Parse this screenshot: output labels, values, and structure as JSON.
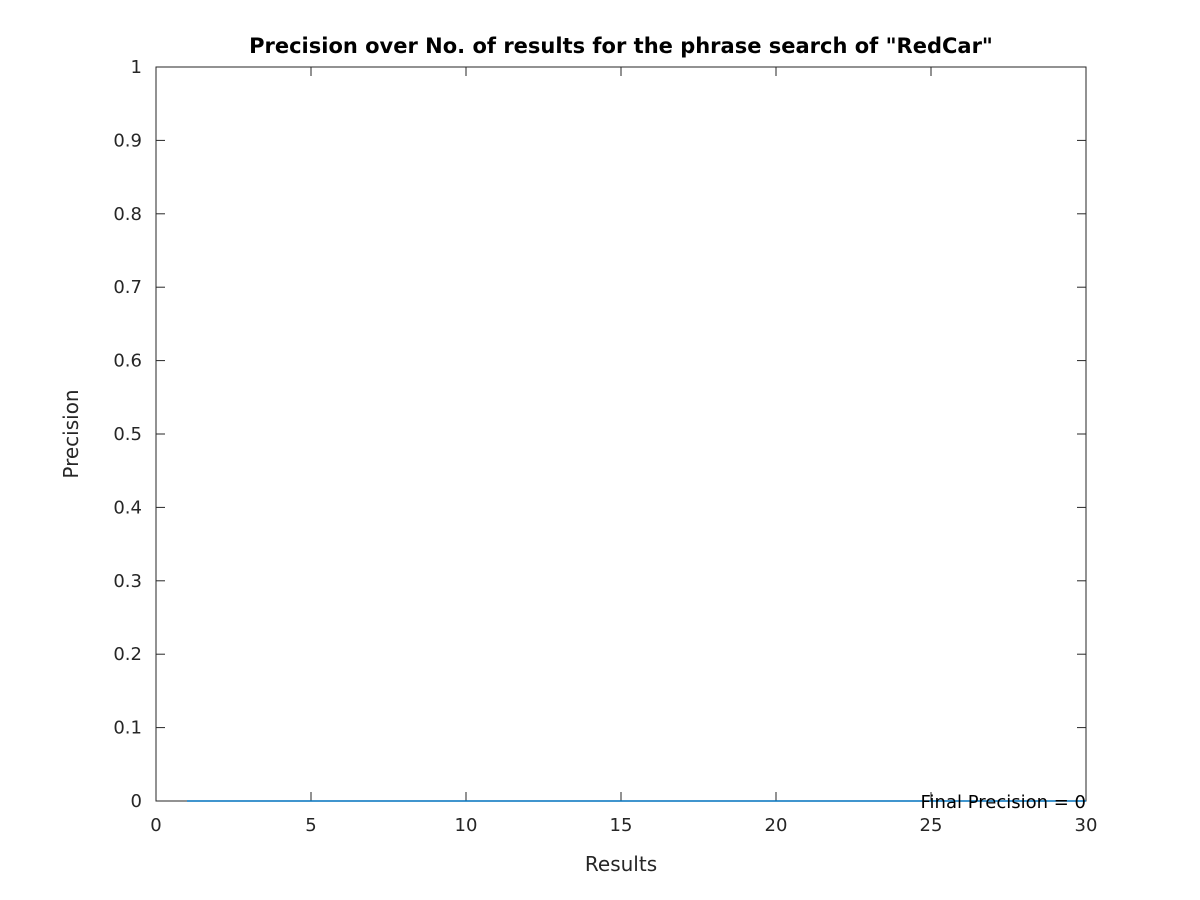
{
  "chart_data": {
    "type": "line",
    "title": "Precision over No. of results for the phrase search of \"RedCar\"",
    "xlabel": "Results",
    "ylabel": "Precision",
    "xlim": [
      0,
      30
    ],
    "ylim": [
      0,
      1
    ],
    "x_ticks": [
      0,
      5,
      10,
      15,
      20,
      25,
      30
    ],
    "x_tick_labels": [
      "0",
      "5",
      "10",
      "15",
      "20",
      "25",
      "30"
    ],
    "y_ticks": [
      0,
      0.1,
      0.2,
      0.3,
      0.4,
      0.5,
      0.6,
      0.7,
      0.8,
      0.9,
      1
    ],
    "y_tick_labels": [
      "0",
      "0.1",
      "0.2",
      "0.3",
      "0.4",
      "0.5",
      "0.6",
      "0.7",
      "0.8",
      "0.9",
      "1"
    ],
    "grid": false,
    "series": [
      {
        "x": [
          1,
          2,
          3,
          4,
          5,
          6,
          7,
          8,
          9,
          10,
          11,
          12,
          13,
          14,
          15,
          16,
          17,
          18,
          19,
          20,
          21,
          22,
          23,
          24,
          25,
          26,
          27,
          28,
          29,
          30
        ],
        "values": [
          0,
          0,
          0,
          0,
          0,
          0,
          0,
          0,
          0,
          0,
          0,
          0,
          0,
          0,
          0,
          0,
          0,
          0,
          0,
          0,
          0,
          0,
          0,
          0,
          0,
          0,
          0,
          0,
          0,
          0
        ],
        "color": "#0072bd"
      }
    ],
    "annotation": {
      "text": "Final Precision = 0",
      "x": 30,
      "y": 0
    }
  }
}
